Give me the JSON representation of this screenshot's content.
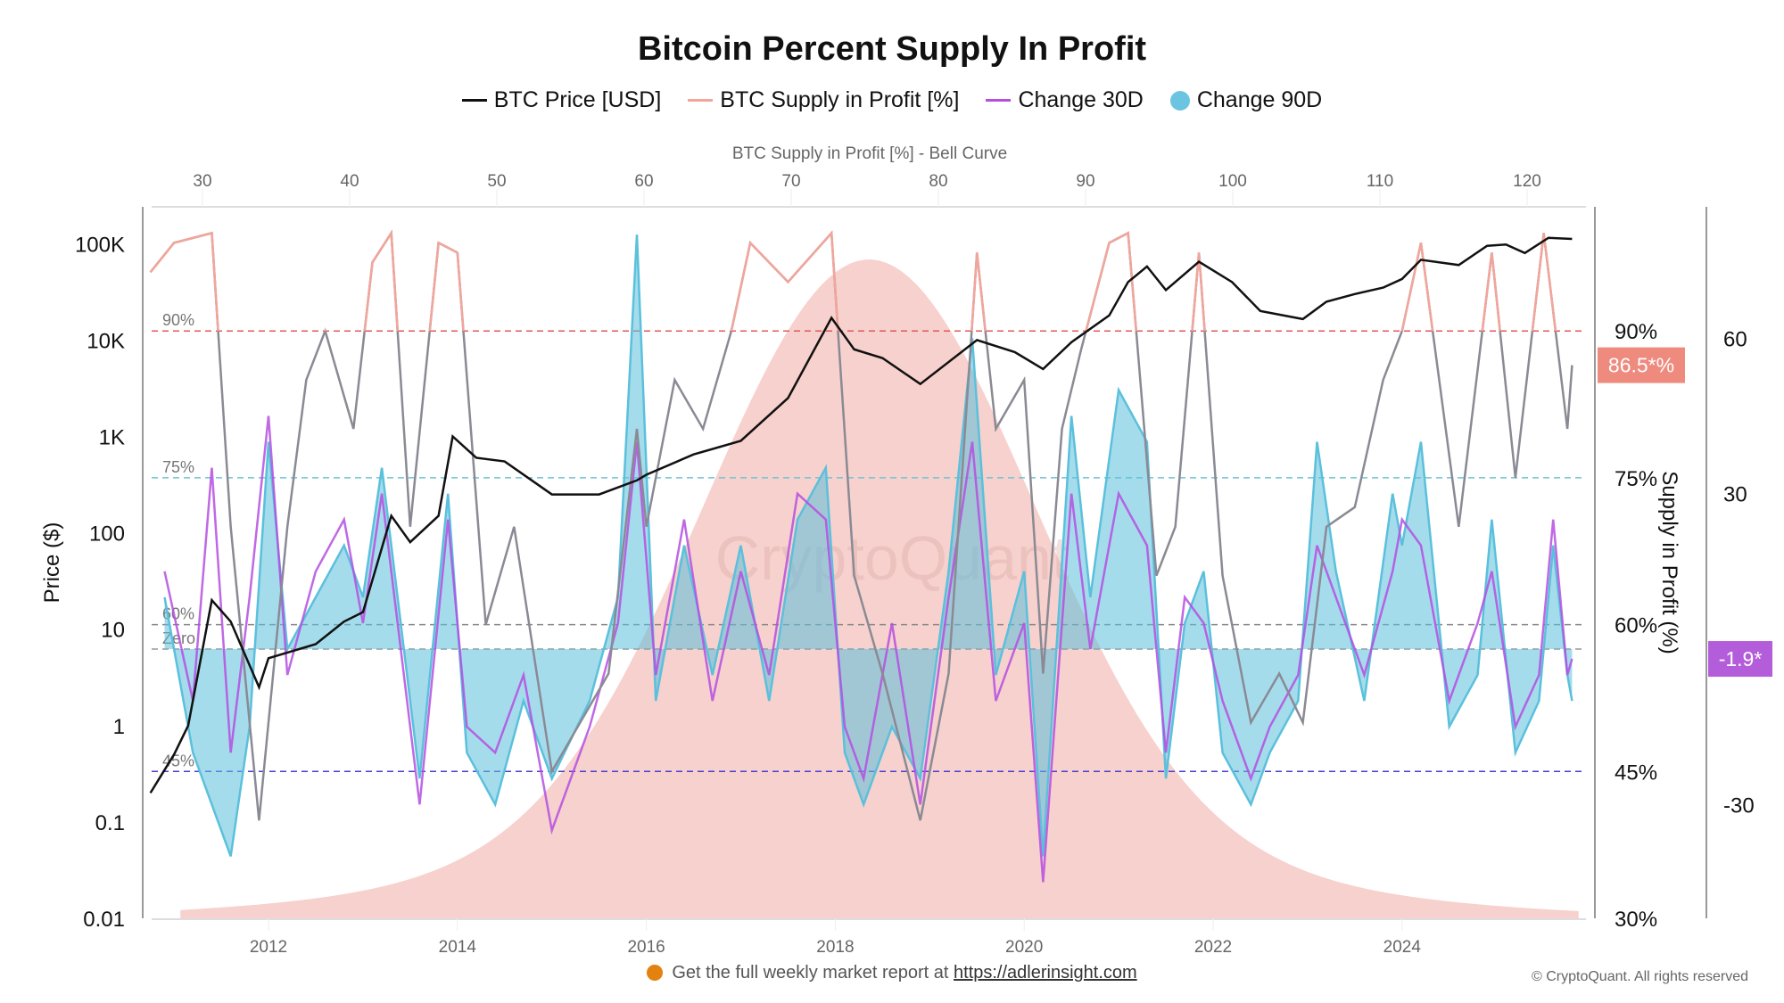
{
  "chart_data": {
    "type": "line",
    "title": "Bitcoin Percent Supply In Profit",
    "legend": [
      "BTC Price [USD]",
      "BTC Supply in Profit [%]",
      "Change 30D",
      "Change 90D"
    ],
    "legend_placement": "top",
    "top_axis_label": "BTC Supply in Profit [%] - Bell Curve",
    "top_axis_ticks": [
      "30",
      "40",
      "50",
      "60",
      "70",
      "80",
      "90",
      "100",
      "110",
      "120"
    ],
    "ylabel_left": "Price ($)",
    "ylabel_right": "Supply in Profit (%)",
    "x_ticks": [
      "2012",
      "2014",
      "2016",
      "2018",
      "2020",
      "2022",
      "2024"
    ],
    "xlim": [
      2010.6,
      2026.0
    ],
    "y_left_scale": "log",
    "y_left_ticks": [
      "100K",
      "10K",
      "1K",
      "100",
      "10",
      "1",
      "0.1",
      "0.01"
    ],
    "y_left_range": [
      0.01,
      240000
    ],
    "y_right_ticks": [
      "90%",
      "75%",
      "60%",
      "45%",
      "30%"
    ],
    "y_right_range": [
      30,
      102.6
    ],
    "y_change_ticks": [
      "60",
      "30",
      "-30"
    ],
    "y_change_range": [
      -51.8,
      85
    ],
    "reference_lines": [
      {
        "label": "90%",
        "value": 90,
        "axis": "supply",
        "color": "#e0585c"
      },
      {
        "label": "75%",
        "value": 75,
        "axis": "supply",
        "color": "#6fc3d2"
      },
      {
        "label": "60%",
        "value": 60,
        "axis": "supply",
        "color": "#888888"
      },
      {
        "label": "Zero",
        "value": 0,
        "axis": "change",
        "color": "#999999"
      },
      {
        "label": "45%",
        "value": 45,
        "axis": "supply",
        "color": "#4a3fd0"
      }
    ],
    "badges": {
      "supply_last": "86.5*%",
      "change_last": "-1.9*"
    },
    "colors": {
      "price": "#111111",
      "supply_high": "#f2a59b",
      "supply_low": "#8a8a95",
      "change30": "#b44fe0",
      "change90": "#5bc0dc",
      "bell": "#f6c9c4",
      "badge_supply": "#ee8a7e",
      "badge_change": "#b35ddb"
    },
    "bell_curve": {
      "x_range": [
        28.5,
        123.5
      ],
      "peak_at": 75.3
    },
    "watermark": "CryptoQuant",
    "series": [
      {
        "name": "BTC Price [USD]",
        "x": [
          2010.75,
          2011.0,
          2011.15,
          2011.4,
          2011.6,
          2011.9,
          2012.0,
          2012.5,
          2012.8,
          2013.0,
          2013.3,
          2013.5,
          2013.8,
          2013.95,
          2014.2,
          2014.5,
          2015.0,
          2015.5,
          2015.9,
          2016.0,
          2016.5,
          2017.0,
          2017.5,
          2017.96,
          2018.2,
          2018.5,
          2018.9,
          2019.5,
          2019.9,
          2020.2,
          2020.5,
          2020.9,
          2021.1,
          2021.3,
          2021.5,
          2021.85,
          2022.2,
          2022.5,
          2022.95,
          2023.2,
          2023.5,
          2023.8,
          2024.0,
          2024.2,
          2024.6,
          2024.9,
          2025.1,
          2025.3,
          2025.55,
          2025.8
        ],
        "y": [
          0.2,
          0.5,
          1,
          20,
          12,
          2.5,
          5,
          7,
          12,
          15,
          150,
          80,
          150,
          1000,
          600,
          550,
          250,
          250,
          350,
          400,
          650,
          900,
          2500,
          17000,
          8000,
          6500,
          3500,
          10000,
          7500,
          5000,
          9500,
          18000,
          40000,
          58000,
          33000,
          65000,
          40000,
          20000,
          16500,
          25000,
          30000,
          35000,
          43000,
          68000,
          60000,
          95000,
          98000,
          80000,
          115000,
          112000
        ]
      },
      {
        "name": "BTC Supply in Profit [%]",
        "x": [
          2010.75,
          2011.0,
          2011.4,
          2011.6,
          2011.9,
          2012.2,
          2012.4,
          2012.6,
          2012.9,
          2013.1,
          2013.3,
          2013.5,
          2013.8,
          2014.0,
          2014.3,
          2014.6,
          2015.0,
          2015.3,
          2015.6,
          2015.9,
          2016.0,
          2016.3,
          2016.6,
          2016.9,
          2017.1,
          2017.5,
          2017.96,
          2018.2,
          2018.5,
          2018.9,
          2019.2,
          2019.5,
          2019.7,
          2020.0,
          2020.2,
          2020.4,
          2020.6,
          2020.9,
          2021.1,
          2021.4,
          2021.6,
          2021.85,
          2022.1,
          2022.4,
          2022.7,
          2022.95,
          2023.2,
          2023.5,
          2023.8,
          2024.0,
          2024.2,
          2024.6,
          2024.95,
          2025.2,
          2025.5,
          2025.75,
          2025.8
        ],
        "y": [
          96,
          99,
          100,
          70,
          40,
          70,
          85,
          90,
          80,
          97,
          100,
          70,
          99,
          98,
          60,
          70,
          45,
          50,
          55,
          80,
          70,
          85,
          80,
          90,
          99,
          95,
          100,
          65,
          55,
          40,
          55,
          98,
          80,
          85,
          55,
          80,
          88,
          99,
          100,
          65,
          70,
          98,
          65,
          50,
          55,
          50,
          70,
          72,
          85,
          90,
          99,
          70,
          98,
          75,
          100,
          80,
          86.5
        ]
      },
      {
        "name": "Change 30D",
        "x": [
          2010.9,
          2011.2,
          2011.4,
          2011.6,
          2011.8,
          2012.0,
          2012.2,
          2012.5,
          2012.8,
          2013.0,
          2013.2,
          2013.6,
          2013.9,
          2014.1,
          2014.4,
          2014.7,
          2015.0,
          2015.4,
          2015.7,
          2015.9,
          2016.1,
          2016.4,
          2016.7,
          2017.0,
          2017.3,
          2017.6,
          2017.9,
          2018.1,
          2018.3,
          2018.6,
          2018.9,
          2019.2,
          2019.45,
          2019.7,
          2020.0,
          2020.2,
          2020.5,
          2020.7,
          2021.0,
          2021.3,
          2021.5,
          2021.7,
          2021.9,
          2022.1,
          2022.4,
          2022.6,
          2022.9,
          2023.1,
          2023.3,
          2023.6,
          2023.9,
          2024.0,
          2024.2,
          2024.5,
          2024.8,
          2024.95,
          2025.2,
          2025.45,
          2025.6,
          2025.75,
          2025.8
        ],
        "y": [
          15,
          -10,
          35,
          -20,
          10,
          45,
          -5,
          15,
          25,
          5,
          30,
          -30,
          25,
          -15,
          -20,
          -5,
          -35,
          -15,
          5,
          40,
          -5,
          25,
          -10,
          15,
          -5,
          30,
          25,
          -15,
          -25,
          5,
          -30,
          10,
          40,
          -10,
          5,
          -45,
          30,
          0,
          30,
          20,
          -20,
          10,
          5,
          -10,
          -25,
          -15,
          -5,
          20,
          10,
          -5,
          15,
          25,
          20,
          -10,
          5,
          15,
          -15,
          -5,
          25,
          -5,
          -1.9
        ]
      },
      {
        "name": "Change 90D",
        "x": [
          2010.9,
          2011.2,
          2011.4,
          2011.6,
          2011.8,
          2012.0,
          2012.2,
          2012.5,
          2012.8,
          2013.0,
          2013.2,
          2013.6,
          2013.9,
          2014.1,
          2014.4,
          2014.7,
          2015.0,
          2015.4,
          2015.7,
          2015.9,
          2016.1,
          2016.4,
          2016.7,
          2017.0,
          2017.3,
          2017.6,
          2017.9,
          2018.1,
          2018.3,
          2018.6,
          2018.9,
          2019.2,
          2019.45,
          2019.7,
          2020.0,
          2020.2,
          2020.5,
          2020.7,
          2021.0,
          2021.3,
          2021.5,
          2021.7,
          2021.9,
          2022.1,
          2022.4,
          2022.6,
          2022.9,
          2023.1,
          2023.3,
          2023.6,
          2023.9,
          2024.0,
          2024.2,
          2024.5,
          2024.8,
          2024.95,
          2025.2,
          2025.45,
          2025.6,
          2025.75,
          2025.8
        ],
        "y": [
          10,
          -20,
          -30,
          -40,
          -15,
          40,
          0,
          10,
          20,
          10,
          35,
          -25,
          30,
          -20,
          -30,
          -10,
          -25,
          -10,
          10,
          80,
          -10,
          20,
          -5,
          20,
          -10,
          25,
          35,
          -20,
          -30,
          -15,
          -25,
          15,
          60,
          -5,
          15,
          -40,
          45,
          10,
          50,
          40,
          -25,
          5,
          15,
          -20,
          -30,
          -20,
          -10,
          40,
          15,
          -10,
          30,
          20,
          40,
          -15,
          -5,
          25,
          -20,
          -10,
          20,
          -5,
          -10
        ]
      }
    ]
  },
  "footer": {
    "text": "Get the full weekly market report at ",
    "link": "https://adlerinsight.com",
    "copyright": "© CryptoQuant. All rights reserved"
  }
}
